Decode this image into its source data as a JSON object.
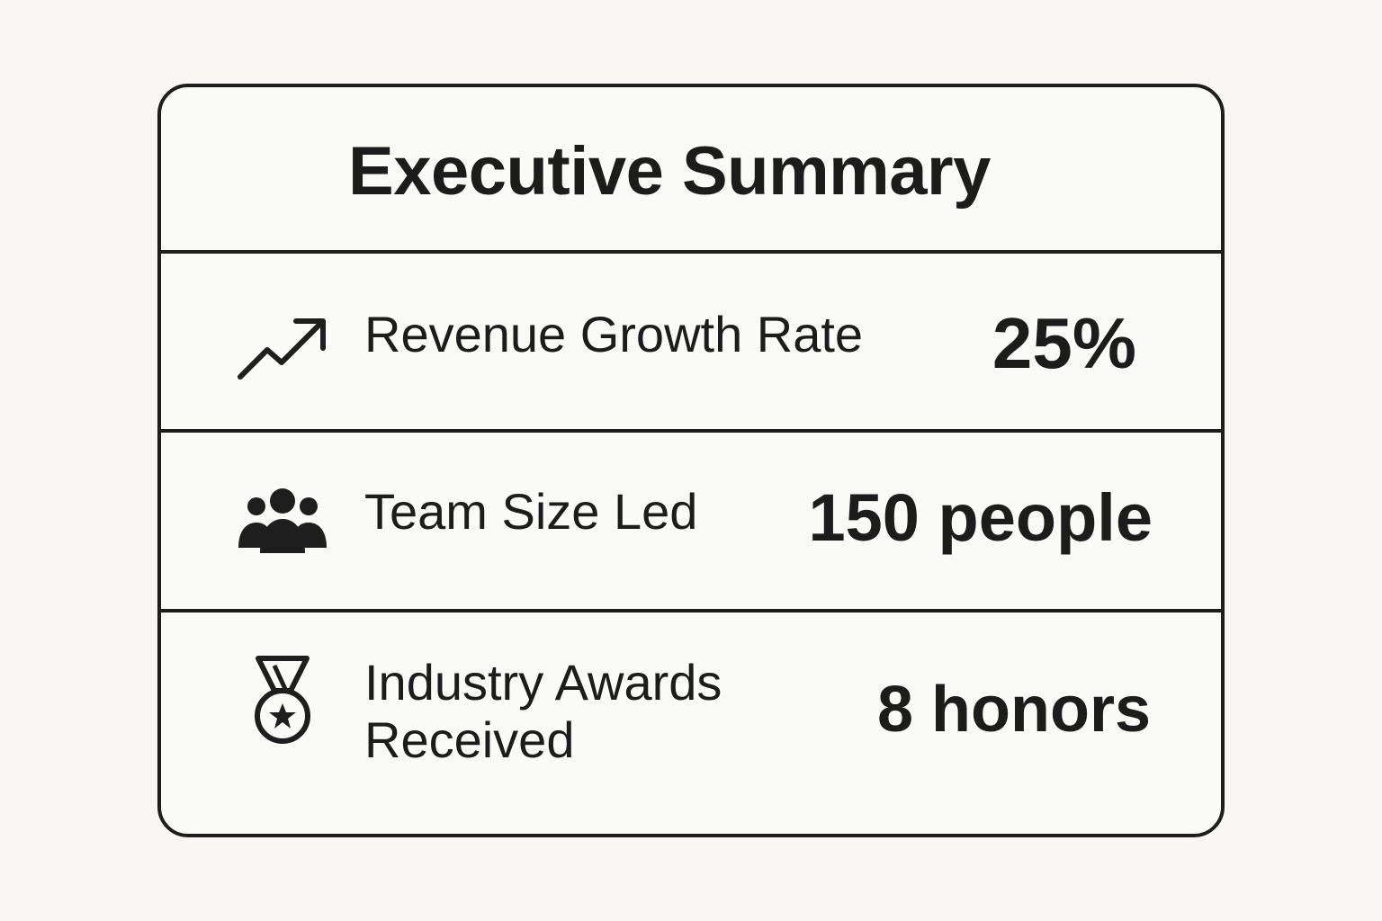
{
  "card": {
    "title": "Executive Summary",
    "rows": [
      {
        "icon": "trending-up-icon",
        "label": "Revenue Growth Rate",
        "value": "25%"
      },
      {
        "icon": "team-people-icon",
        "label": "Team Size Led",
        "value": "150 people"
      },
      {
        "icon": "award-medal-icon",
        "label": "Industry Awards Received",
        "value": "8 honors"
      }
    ]
  },
  "colors": {
    "background": "#f8f7f3",
    "card_background": "#fafaf7",
    "border": "#1e1e1e",
    "text": "#1c1c1c"
  }
}
